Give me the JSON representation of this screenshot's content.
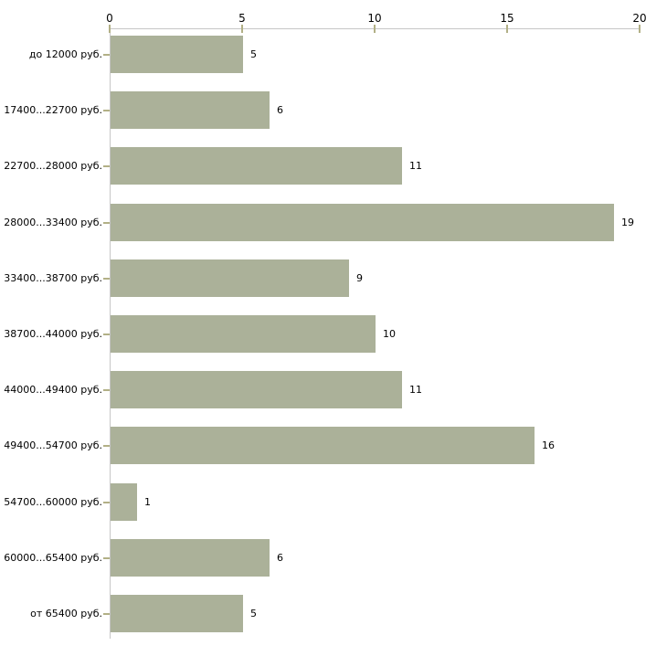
{
  "page": {
    "background": "#ffffff"
  },
  "chart_data": {
    "type": "bar",
    "orientation": "horizontal",
    "title": "",
    "categories": [
      "до 12000 руб.",
      "17400...22700 руб.",
      "22700...28000 руб.",
      "28000...33400 руб.",
      "33400...38700 руб.",
      "38700...44000 руб.",
      "44000...49400 руб.",
      "49400...54700 руб.",
      "54700...60000 руб.",
      "60000...65400 руб.",
      "от 65400 руб."
    ],
    "values": [
      5,
      6,
      11,
      19,
      9,
      10,
      11,
      16,
      1,
      6,
      5
    ],
    "x_ticks": [
      0,
      5,
      10,
      15,
      20
    ],
    "xlim": [
      0,
      20
    ],
    "xlabel": "",
    "ylabel": "",
    "grid": false,
    "legend": null,
    "value_label_position": "right-of-bar",
    "colors": {
      "bar_fill": "#abb199",
      "axis_line": "#c6c6c6",
      "tick_mark": "#b2b086",
      "text": "#000000"
    }
  }
}
